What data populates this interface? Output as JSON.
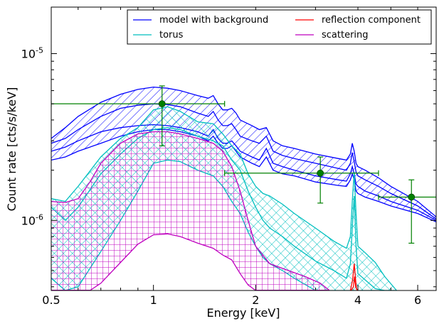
{
  "chart_data": {
    "type": "line",
    "xlabel": "Energy [keV]",
    "ylabel": "Count rate [cts/s/keV]",
    "x_scale": "log",
    "y_scale": "log",
    "xlim": [
      0.5,
      6.8
    ],
    "ylim": [
      3.8e-07,
      1.9e-05
    ],
    "x_ticks": [
      {
        "value": 0.5,
        "label": "0.5"
      },
      {
        "value": 1,
        "label": "1"
      },
      {
        "value": 2,
        "label": "2"
      },
      {
        "value": 4,
        "label": "4"
      },
      {
        "value": 6,
        "label": "6"
      }
    ],
    "y_ticks": [
      {
        "value": 1e-06,
        "base": "10",
        "exp": "-6"
      },
      {
        "value": 1e-05,
        "base": "10",
        "exp": "-5"
      }
    ],
    "legend_position": "top-right",
    "legend": [
      {
        "label": "model with background",
        "color": "#0000ff"
      },
      {
        "label": "reflection component",
        "color": "#ff0000"
      },
      {
        "label": "torus",
        "color": "#00bfbf"
      },
      {
        "label": "scattering",
        "color": "#bf00bf"
      }
    ],
    "data_points": {
      "color": "#008000",
      "points": [
        {
          "x": 1.06,
          "y": 5e-06,
          "xerr": [
            0.5,
            1.62
          ],
          "yerr": [
            2.8e-06,
            6.4e-06
          ]
        },
        {
          "x": 3.1,
          "y": 1.92e-06,
          "xerr": [
            1.62,
            4.6
          ],
          "yerr": [
            1.27e-06,
            2.4e-06
          ]
        },
        {
          "x": 5.75,
          "y": 1.38e-06,
          "xerr": [
            4.6,
            6.8
          ],
          "yerr": [
            7.3e-07,
            1.75e-06
          ]
        }
      ]
    },
    "series": [
      {
        "key": "model",
        "color": "#0000ff",
        "hatch": "diagonal",
        "band": {
          "x": [
            0.5,
            0.55,
            0.6,
            0.7,
            0.8,
            0.9,
            1.0,
            1.1,
            1.2,
            1.35,
            1.45,
            1.5,
            1.55,
            1.6,
            1.65,
            1.7,
            1.75,
            1.8,
            1.95,
            2.05,
            2.15,
            2.25,
            2.4,
            2.6,
            3.0,
            3.5,
            3.7,
            3.8,
            3.85,
            3.9,
            3.95,
            4.0,
            4.2,
            4.6,
            5.0,
            6.0,
            6.8
          ],
          "upper": [
            3.1e-06,
            3.6e-06,
            4.2e-06,
            5.1e-06,
            5.7e-06,
            6.1e-06,
            6.3e-06,
            6.2e-06,
            6e-06,
            5.6e-06,
            5.4e-06,
            5.6e-06,
            5e-06,
            4.6e-06,
            4.6e-06,
            4.7e-06,
            4.4e-06,
            4e-06,
            3.7e-06,
            3.5e-06,
            3.6e-06,
            3e-06,
            2.8e-06,
            2.7e-06,
            2.5e-06,
            2.35e-06,
            2.3e-06,
            2.5e-06,
            2.9e-06,
            2.6e-06,
            2.2e-06,
            2.1e-06,
            2e-06,
            1.8e-06,
            1.6e-06,
            1.3e-06,
            1.05e-06
          ],
          "lower": [
            2.3e-06,
            2.4e-06,
            2.6e-06,
            2.9e-06,
            3.2e-06,
            3.4e-06,
            3.5e-06,
            3.5e-06,
            3.4e-06,
            3.2e-06,
            3e-06,
            3.2e-06,
            2.9e-06,
            2.7e-06,
            2.7e-06,
            2.8e-06,
            2.6e-06,
            2.4e-06,
            2.2e-06,
            2.1e-06,
            2.4e-06,
            2e-06,
            1.9e-06,
            1.85e-06,
            1.7e-06,
            1.62e-06,
            1.6e-06,
            1.75e-06,
            1.9e-06,
            1.75e-06,
            1.5e-06,
            1.45e-06,
            1.38e-06,
            1.3e-06,
            1.22e-06,
            1.1e-06,
            9.8e-07
          ]
        },
        "inner": [
          [
            2.9e-06,
            3.1e-06,
            3.5e-06,
            4.2e-06,
            4.7e-06,
            4.9e-06,
            5e-06,
            4.95e-06,
            4.8e-06,
            4.4e-06,
            4.2e-06,
            4.5e-06,
            4e-06,
            3.7e-06,
            3.7e-06,
            3.8e-06,
            3.5e-06,
            3.2e-06,
            3e-06,
            2.9e-06,
            3.2e-06,
            2.6e-06,
            2.45e-06,
            2.35e-06,
            2.2e-06,
            2.05e-06,
            2e-06,
            2.2e-06,
            2.55e-06,
            2.25e-06,
            1.95e-06,
            1.85e-06,
            1.75e-06,
            1.6e-06,
            1.45e-06,
            1.22e-06,
            1.02e-06
          ],
          [
            2.6e-06,
            2.75e-06,
            3e-06,
            3.4e-06,
            3.6e-06,
            3.7e-06,
            3.75e-06,
            3.7e-06,
            3.6e-06,
            3.4e-06,
            3.2e-06,
            3.5e-06,
            3.1e-06,
            2.9e-06,
            2.9e-06,
            3e-06,
            2.8e-06,
            2.6e-06,
            2.4e-06,
            2.3e-06,
            2.7e-06,
            2.2e-06,
            2.1e-06,
            2e-06,
            1.85e-06,
            1.75e-06,
            1.72e-06,
            1.9e-06,
            2.1e-06,
            1.9e-06,
            1.65e-06,
            1.6e-06,
            1.5e-06,
            1.4e-06,
            1.3e-06,
            1.15e-06,
            1e-06
          ]
        ]
      },
      {
        "key": "torus",
        "color": "#00bfbf",
        "hatch": "cross-diagonal",
        "band": {
          "x": [
            0.5,
            0.55,
            0.6,
            0.7,
            0.8,
            0.9,
            1.0,
            1.1,
            1.2,
            1.35,
            1.5,
            1.6,
            1.7,
            1.8,
            1.9,
            2.0,
            2.1,
            2.2,
            2.4,
            2.6,
            3.0,
            3.4,
            3.7,
            3.8,
            3.85,
            3.9,
            3.95,
            4.0,
            4.2,
            4.5,
            4.8,
            5.2
          ],
          "upper": [
            1.35e-06,
            1.3e-06,
            1.6e-06,
            2.4e-06,
            3.1e-06,
            3.6e-06,
            4.6e-06,
            4.8e-06,
            4.5e-06,
            3.9e-06,
            3.8e-06,
            3.3e-06,
            2.8e-06,
            2.5e-06,
            1.9e-06,
            1.6e-06,
            1.45e-06,
            1.4e-06,
            1.25e-06,
            1.1e-06,
            9e-07,
            7.5e-07,
            6.8e-07,
            8e-07,
            1.3e-06,
            1.95e-06,
            1.1e-06,
            7e-07,
            6.4e-07,
            5.6e-07,
            4.6e-07,
            3.8e-07
          ],
          "lower": [
            4.5e-07,
            3.8e-07,
            4e-07,
            6.5e-07,
            1e-06,
            1.5e-06,
            2.2e-06,
            2.3e-06,
            2.25e-06,
            2e-06,
            1.85e-06,
            1.6e-06,
            1.3e-06,
            1.1e-06,
            8.5e-07,
            7e-07,
            6e-07,
            5.5e-07,
            5e-07,
            4.5e-07,
            3.8e-07,
            3.8e-07,
            3.8e-07,
            3.8e-07,
            3.8e-07,
            3.8e-07,
            3.8e-07,
            3.8e-07,
            3.8e-07,
            3.8e-07,
            3.8e-07,
            3.8e-07
          ]
        },
        "inner": [
          [
            1.2e-06,
            1e-06,
            1.2e-06,
            1.9e-06,
            2.5e-06,
            3.1e-06,
            3.5e-06,
            3.6e-06,
            3.5e-06,
            3.2e-06,
            3e-06,
            2.8e-06,
            2.3e-06,
            2e-06,
            1.5e-06,
            1.2e-06,
            1e-06,
            9e-07,
            8e-07,
            7e-07,
            5.7e-07,
            5e-07,
            4.5e-07,
            5.5e-07,
            9e-07,
            1.4e-06,
            7e-07,
            4.8e-07,
            4.4e-07,
            3.9e-07,
            3.8e-07,
            3.8e-07
          ]
        ]
      },
      {
        "key": "scattering",
        "color": "#bf00bf",
        "hatch": "grid",
        "band": {
          "x": [
            0.5,
            0.55,
            0.6,
            0.65,
            0.7,
            0.8,
            0.9,
            1.0,
            1.1,
            1.2,
            1.35,
            1.5,
            1.6,
            1.7,
            1.8,
            1.9,
            2.0,
            2.2,
            2.5,
            2.8,
            3.1,
            3.3
          ],
          "upper": [
            1.3e-06,
            1.28e-06,
            1.35e-06,
            1.7e-06,
            2.2e-06,
            2.9e-06,
            3.3e-06,
            3.4e-06,
            3.4e-06,
            3.3e-06,
            3.1e-06,
            2.9e-06,
            2.6e-06,
            2.1e-06,
            1.5e-06,
            1e-06,
            7e-07,
            5.5e-07,
            5e-07,
            4.6e-07,
            4.2e-07,
            3.8e-07
          ],
          "lower": [
            3.8e-07,
            3.8e-07,
            3.8e-07,
            3.8e-07,
            4.2e-07,
            5.6e-07,
            7.2e-07,
            8.2e-07,
            8.3e-07,
            8e-07,
            7.3e-07,
            6.8e-07,
            6.2e-07,
            5.8e-07,
            4.8e-07,
            4.1e-07,
            3.8e-07,
            3.8e-07,
            3.8e-07,
            3.8e-07,
            3.8e-07,
            3.8e-07
          ]
        },
        "inner": []
      },
      {
        "key": "reflection",
        "color": "#ff0000",
        "hatch": "none",
        "lines": [
          {
            "x": [
              3.8,
              3.86,
              3.9,
              3.93,
              3.96,
              4.0
            ],
            "y": [
              3.8e-07,
              4.4e-07,
              5.5e-07,
              4.6e-07,
              3.9e-07,
              3.8e-07
            ]
          },
          {
            "x": [
              3.82,
              3.88,
              3.91,
              3.94,
              3.98
            ],
            "y": [
              3.8e-07,
              4e-07,
              4.6e-07,
              4e-07,
              3.8e-07
            ]
          }
        ]
      }
    ]
  }
}
